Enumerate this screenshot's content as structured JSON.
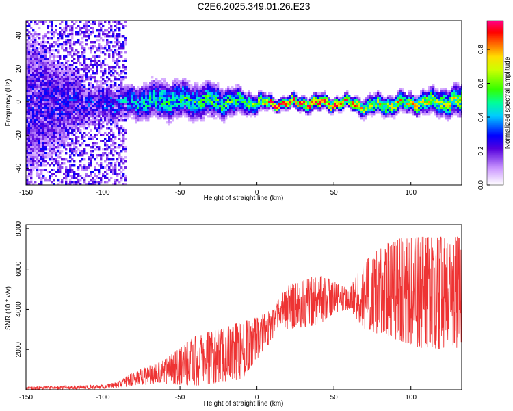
{
  "figure": {
    "title": "C2E6.2025.349.01.26.E23"
  },
  "chart_data": [
    {
      "type": "heatmap",
      "title": "C2E6.2025.349.01.26.E23",
      "xlabel": "Height of straight line (km)",
      "ylabel": "Frequency (Hz)",
      "xlim": [
        -150,
        133
      ],
      "ylim": [
        -50,
        49
      ],
      "xticks": [
        -150,
        -100,
        -50,
        0,
        50,
        100
      ],
      "yticks": [
        -40,
        -20,
        0,
        20,
        40
      ],
      "colorbar": {
        "label": "Normalized spectral amplitude",
        "range": [
          0.0,
          0.97
        ],
        "ticks": [
          0.0,
          0.2,
          0.4,
          0.6,
          0.8
        ]
      },
      "band": {
        "description_points_x": [
          -150,
          -110,
          -85,
          -60,
          -30,
          0,
          10,
          40,
          60,
          70,
          100,
          133
        ],
        "center_freq": [
          0,
          0,
          0,
          2,
          1,
          0,
          0,
          0,
          0,
          -2,
          0,
          1
        ],
        "half_width": [
          45,
          10,
          9,
          10,
          9,
          5,
          3,
          4,
          3,
          5,
          5,
          8
        ],
        "peak_amplitude": [
          0.25,
          0.3,
          0.4,
          0.5,
          0.5,
          0.6,
          0.95,
          0.9,
          0.95,
          0.7,
          0.7,
          0.65
        ]
      }
    },
    {
      "type": "line",
      "xlabel": "Height of straight line (km)",
      "ylabel": "SNR (10 * v/v)",
      "xlim": [
        -150,
        133
      ],
      "ylim": [
        0,
        8200
      ],
      "xticks": [
        -150,
        -100,
        -50,
        0,
        50,
        100
      ],
      "yticks": [
        2000,
        4000,
        6000,
        8000
      ],
      "series": [
        {
          "name": "SNR",
          "color": "#ee3333",
          "envelope_x": [
            -150,
            -100,
            -90,
            -80,
            -60,
            -40,
            -20,
            -10,
            0,
            10,
            20,
            40,
            50,
            60,
            70,
            90,
            110,
            133
          ],
          "envelope_low": [
            0,
            50,
            100,
            200,
            300,
            200,
            400,
            500,
            1500,
            2500,
            3000,
            3200,
            3800,
            4000,
            3000,
            2500,
            2000,
            2000
          ],
          "envelope_high": [
            150,
            250,
            400,
            900,
            1500,
            2700,
            3100,
            3400,
            3600,
            4000,
            5200,
            5700,
            5400,
            5000,
            6500,
            7600,
            7600,
            7600
          ]
        }
      ]
    }
  ]
}
